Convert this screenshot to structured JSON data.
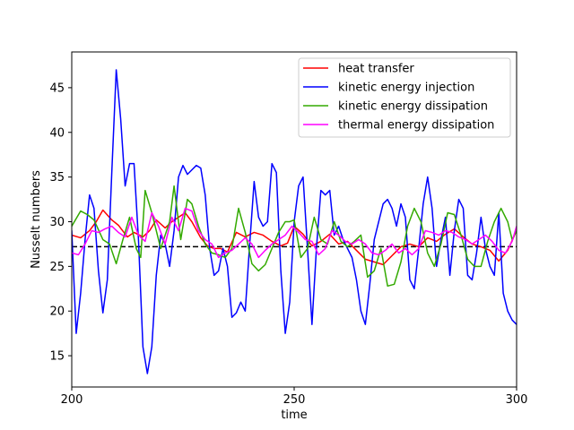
{
  "chart_data": {
    "type": "line",
    "xlabel": "time",
    "ylabel": "Nusselt numbers",
    "xlim": [
      200,
      300
    ],
    "ylim": [
      11.5,
      49
    ],
    "xticks": [
      200,
      250,
      300
    ],
    "yticks": [
      15,
      20,
      25,
      30,
      35,
      40,
      45
    ],
    "grid": false,
    "legend_position": "top-right",
    "reference_line": {
      "y": 27.2,
      "style": "dashed",
      "color": "#000000"
    },
    "series": [
      {
        "name": "heat transfer",
        "color": "#ff0000",
        "x": [
          200,
          202,
          204,
          205.5,
          207,
          209,
          210.5,
          212.5,
          214,
          216,
          217.5,
          219,
          221,
          222.5,
          224,
          225.5,
          227,
          229,
          230.5,
          232,
          233.5,
          235,
          237,
          239,
          241,
          243,
          245,
          247,
          248.5,
          250,
          252,
          254,
          256,
          258,
          260,
          262,
          264,
          266,
          268,
          270,
          272,
          274,
          276,
          278,
          280,
          282,
          284,
          286,
          288,
          290,
          292,
          294,
          296,
          298,
          300
        ],
        "values": [
          28.5,
          28.2,
          29.0,
          30.0,
          31.3,
          30.2,
          29.6,
          28.3,
          28.8,
          28.3,
          29.0,
          30.2,
          29.3,
          30.0,
          30.5,
          31.0,
          30.0,
          28.2,
          27.3,
          27.0,
          27.0,
          26.6,
          28.8,
          28.3,
          28.8,
          28.5,
          27.8,
          27.3,
          27.6,
          29.5,
          28.6,
          27.3,
          27.8,
          28.6,
          27.5,
          27.8,
          26.8,
          25.8,
          25.5,
          25.2,
          26.2,
          27.2,
          27.5,
          27.2,
          28.2,
          27.8,
          28.6,
          29.2,
          28.3,
          27.5,
          27.2,
          26.8,
          25.6,
          26.8,
          29.0
        ]
      },
      {
        "name": "kinetic energy injection",
        "color": "#0000ff",
        "x": [
          200,
          201,
          202,
          203,
          204,
          205,
          206,
          207,
          208,
          209,
          210,
          211,
          212,
          213,
          214,
          215,
          216,
          217,
          218,
          219,
          220,
          221,
          222,
          223,
          224,
          225,
          226,
          227,
          228,
          229,
          230,
          231,
          232,
          233,
          234,
          235,
          236,
          237,
          238,
          239,
          240,
          241,
          242,
          243,
          244,
          245,
          246,
          247,
          248,
          249,
          250,
          251,
          252,
          253,
          254,
          255,
          256,
          257,
          258,
          259,
          260,
          261,
          262,
          263,
          264,
          265,
          266,
          267,
          268,
          269,
          270,
          271,
          272,
          273,
          274,
          275,
          276,
          277,
          278,
          279,
          280,
          281,
          282,
          283,
          284,
          285,
          286,
          287,
          288,
          289,
          290,
          291,
          292,
          293,
          294,
          295,
          296,
          297,
          298,
          299,
          300
        ],
        "values": [
          29.0,
          17.5,
          22.0,
          28.0,
          33.0,
          31.5,
          24.5,
          19.8,
          23.5,
          35.5,
          47.0,
          41.5,
          34.0,
          36.5,
          36.5,
          28.0,
          16.0,
          13.0,
          16.0,
          24.0,
          28.5,
          27.5,
          25.0,
          29.0,
          35.0,
          36.3,
          35.3,
          35.8,
          36.3,
          36.0,
          33.0,
          27.0,
          24.0,
          24.5,
          27.0,
          25.0,
          19.3,
          19.8,
          21.0,
          20.0,
          27.5,
          34.5,
          30.5,
          29.5,
          30.0,
          36.5,
          35.5,
          24.5,
          17.5,
          21.0,
          30.0,
          34.0,
          35.0,
          27.0,
          18.5,
          27.0,
          33.5,
          33.0,
          33.5,
          28.5,
          29.5,
          28.0,
          27.0,
          26.0,
          23.5,
          20.0,
          18.5,
          23.0,
          28.0,
          30.0,
          32.0,
          32.5,
          31.5,
          29.5,
          32.0,
          30.5,
          23.5,
          22.5,
          27.0,
          32.0,
          35.0,
          31.5,
          25.0,
          28.0,
          30.5,
          24.0,
          29.0,
          32.5,
          31.5,
          24.0,
          23.5,
          26.5,
          30.5,
          27.0,
          25.0,
          24.0,
          31.0,
          22.0,
          20.0,
          19.0,
          18.5
        ]
      },
      {
        "name": "kinetic energy dissipation",
        "color": "#33aa00",
        "x": [
          200,
          202,
          203.5,
          205,
          207,
          208.5,
          210,
          211.5,
          213,
          214.5,
          215.5,
          216.5,
          218,
          220,
          222,
          223,
          224.5,
          226,
          227,
          228.5,
          230,
          231.5,
          233,
          234.5,
          236,
          237.5,
          239,
          240.5,
          242,
          243.5,
          245,
          246.5,
          248,
          249,
          250,
          251.5,
          253,
          254.5,
          256,
          257.5,
          259,
          260.5,
          262,
          263.5,
          265,
          266.5,
          268,
          269.5,
          271,
          272.5,
          274,
          275.5,
          277,
          278.5,
          280,
          281.5,
          283,
          284.5,
          286,
          287.5,
          289,
          290.5,
          292,
          293.5,
          295,
          296.5,
          298,
          299,
          300
        ],
        "values": [
          29.5,
          31.2,
          30.8,
          30.2,
          28.0,
          27.5,
          25.3,
          28.0,
          30.5,
          27.0,
          26.0,
          33.5,
          31.0,
          27.0,
          30.0,
          34.0,
          28.0,
          32.5,
          32.0,
          29.5,
          27.5,
          26.5,
          26.3,
          26.0,
          27.0,
          31.5,
          28.8,
          25.3,
          24.5,
          25.2,
          27.0,
          28.8,
          30.0,
          30.0,
          30.2,
          26.0,
          27.0,
          30.5,
          28.0,
          27.5,
          30.0,
          27.8,
          27.2,
          27.8,
          28.5,
          23.8,
          24.5,
          27.0,
          22.8,
          23.0,
          25.5,
          29.5,
          31.5,
          30.0,
          26.5,
          25.0,
          27.5,
          31.0,
          30.8,
          28.5,
          25.8,
          25.0,
          25.0,
          27.8,
          30.0,
          31.5,
          30.0,
          28.0,
          29.0
        ]
      },
      {
        "name": "thermal energy dissipation",
        "color": "#ff00ff",
        "x": [
          200,
          201.5,
          203,
          204.5,
          206,
          207.5,
          209,
          210.5,
          212,
          213.5,
          215,
          216.5,
          218,
          219.5,
          221,
          222.5,
          224,
          225.5,
          227,
          228.5,
          230,
          231.5,
          233,
          234.5,
          236,
          237.5,
          239,
          240.5,
          242,
          243.5,
          245,
          246.5,
          248,
          249.5,
          251,
          252.5,
          254,
          255.5,
          257,
          258.5,
          260,
          261.5,
          263,
          264.5,
          266,
          267.5,
          269,
          270.5,
          272,
          273.5,
          275,
          276.5,
          278,
          279.5,
          281,
          282.5,
          284,
          285.5,
          287,
          288.5,
          290,
          291.5,
          293,
          294.5,
          296,
          297.5,
          299,
          300
        ],
        "values": [
          26.5,
          26.3,
          27.5,
          29.0,
          28.8,
          29.2,
          29.5,
          28.8,
          28.3,
          30.5,
          28.5,
          27.8,
          31.0,
          29.5,
          27.5,
          30.5,
          29.0,
          31.5,
          31.2,
          29.0,
          28.0,
          27.5,
          26.0,
          26.5,
          26.8,
          27.5,
          28.2,
          27.5,
          26.0,
          26.8,
          27.5,
          28.0,
          28.5,
          29.5,
          28.8,
          28.0,
          27.8,
          26.3,
          27.0,
          29.0,
          28.5,
          27.8,
          27.5,
          28.0,
          27.5,
          26.5,
          26.3,
          26.8,
          27.5,
          26.5,
          27.0,
          26.3,
          27.0,
          29.0,
          28.8,
          28.5,
          29.0,
          28.8,
          28.3,
          28.0,
          27.5,
          28.0,
          28.5,
          27.8,
          26.8,
          26.5,
          27.8,
          29.5
        ]
      }
    ]
  }
}
